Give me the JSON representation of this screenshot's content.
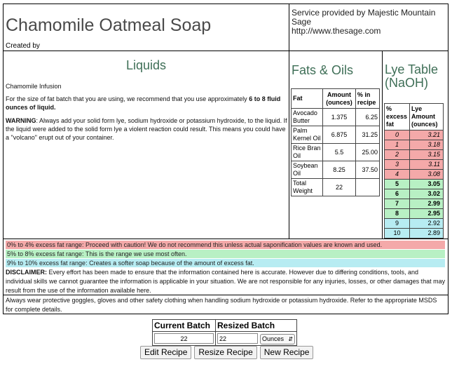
{
  "header": {
    "title": "Chamomile Oatmeal Soap",
    "created_by": "Created by",
    "service_line1": "Service provided by Majestic Mountain Sage",
    "service_line2": "http://www.thesage.com"
  },
  "liquids": {
    "heading": "Liquids",
    "infusion": "Chamomile Infusion",
    "recommend_prefix": "For the size of fat batch that you are using, we recommend that you use approximately ",
    "recommend_amount": "6 to 8 fluid ounces of liquid.",
    "warning_label": "WARNING",
    "warning_text": ": Always add your solid form lye, sodium hydroxide or potassium hydroxide, to the liquid. If the liquid were added to the solid form lye a violent reaction could result. This means you could have a \"volcano\" erupt out of your container."
  },
  "fats": {
    "heading": "Fats & Oils",
    "columns": [
      "Fat",
      "Amount (ounces)",
      "% in recipe"
    ],
    "rows": [
      {
        "name": "Avocado Butter",
        "amount": "1.375",
        "pct": "6.25"
      },
      {
        "name": "Palm Kernel Oil",
        "amount": "6.875",
        "pct": "31.25"
      },
      {
        "name": "Rice Bran Oil",
        "amount": "5.5",
        "pct": "25.00"
      },
      {
        "name": "Soybean Oil",
        "amount": "8.25",
        "pct": "37.50"
      }
    ],
    "total_label": "Total Weight",
    "total_value": "22"
  },
  "lye": {
    "heading": "Lye Table (NaOH)",
    "columns": [
      "% excess fat",
      "Lye Amount (ounces)"
    ],
    "rows": [
      {
        "excess": "0",
        "amount": "3.21",
        "band": "red"
      },
      {
        "excess": "1",
        "amount": "3.18",
        "band": "red"
      },
      {
        "excess": "2",
        "amount": "3.15",
        "band": "red"
      },
      {
        "excess": "3",
        "amount": "3.11",
        "band": "red"
      },
      {
        "excess": "4",
        "amount": "3.08",
        "band": "red"
      },
      {
        "excess": "5",
        "amount": "3.05",
        "band": "green"
      },
      {
        "excess": "6",
        "amount": "3.02",
        "band": "green"
      },
      {
        "excess": "7",
        "amount": "2.99",
        "band": "green"
      },
      {
        "excess": "8",
        "amount": "2.95",
        "band": "green"
      },
      {
        "excess": "9",
        "amount": "2.92",
        "band": "blue"
      },
      {
        "excess": "10",
        "amount": "2.89",
        "band": "blue"
      }
    ]
  },
  "ranges": {
    "red": "0% to 4% excess fat range: Proceed with caution! We do not recommend this unless actual saponification values are known and used.",
    "green": "5% to 8% excess fat range: This is the range we use most often.",
    "blue": "9% to 10% excess fat range: Creates a softer soap because of the amount of excess fat."
  },
  "disclaimer": {
    "label": "DISCLAIMER:",
    "text": " Every effort has been made to ensure that the information contained here is accurate. However due to differing conditions, tools, and individual skills we cannot guarantee the information is applicable in your situation. We are not responsible for any injuries, losses, or other damages that may result from the use of the information available here."
  },
  "safety": "Always wear protective goggles, gloves and other safety clothing when handling sodium hydroxide or potassium hydroxide. Refer to the appropriate MSDS for complete details.",
  "batch": {
    "current_label": "Current Batch",
    "resized_label": "Resized Batch",
    "current_value": "22",
    "resized_value": "22",
    "unit": "Ounces"
  },
  "buttons": {
    "edit": "Edit Recipe",
    "resize": "Resize Recipe",
    "new": "New Recipe"
  },
  "colors": {
    "heading_green": "#3f6f57",
    "band_red": "#f4a9a9",
    "band_green": "#b8f0c4",
    "band_blue": "#b7ecf2"
  }
}
